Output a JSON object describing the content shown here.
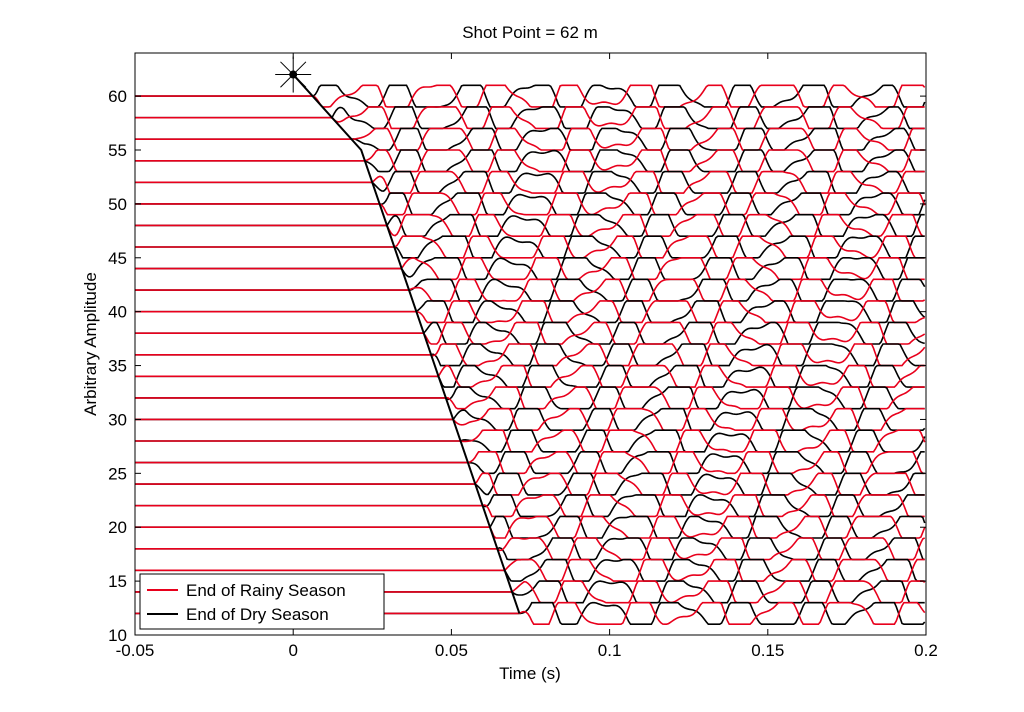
{
  "chart_data": {
    "type": "line",
    "title": "Shot Point = 62 m",
    "xlabel": "Time (s)",
    "ylabel": "Arbitrary Amplitude",
    "xlim": [
      -0.05,
      0.2
    ],
    "ylim": [
      10,
      64
    ],
    "xticks": [
      -0.05,
      0,
      0.05,
      0.1,
      0.15,
      0.2
    ],
    "xtick_labels": [
      "-0.05",
      "0",
      "0.05",
      "0.1",
      "0.15",
      "0.2"
    ],
    "yticks": [
      10,
      15,
      20,
      25,
      30,
      35,
      40,
      45,
      50,
      55,
      60
    ],
    "ytick_labels": [
      "10",
      "15",
      "20",
      "25",
      "30",
      "35",
      "40",
      "45",
      "50",
      "55",
      "60"
    ],
    "grid": false,
    "legend_position": "bottom-left",
    "shot_point": {
      "x": 0,
      "y": 62
    },
    "trace_baselines": [
      60,
      58,
      56,
      54,
      52,
      50,
      48,
      46,
      44,
      42,
      40,
      38,
      36,
      34,
      32,
      30,
      28,
      26,
      24,
      22,
      20,
      18,
      16,
      14,
      12
    ],
    "first_arrival": {
      "x": [
        0,
        0.0215,
        0.0715
      ],
      "y": [
        62,
        55,
        12
      ]
    },
    "series": [
      {
        "name": "End of Rainy Season",
        "color": "#e8001c"
      },
      {
        "name": "End of Dry Season",
        "color": "#000000"
      }
    ]
  }
}
